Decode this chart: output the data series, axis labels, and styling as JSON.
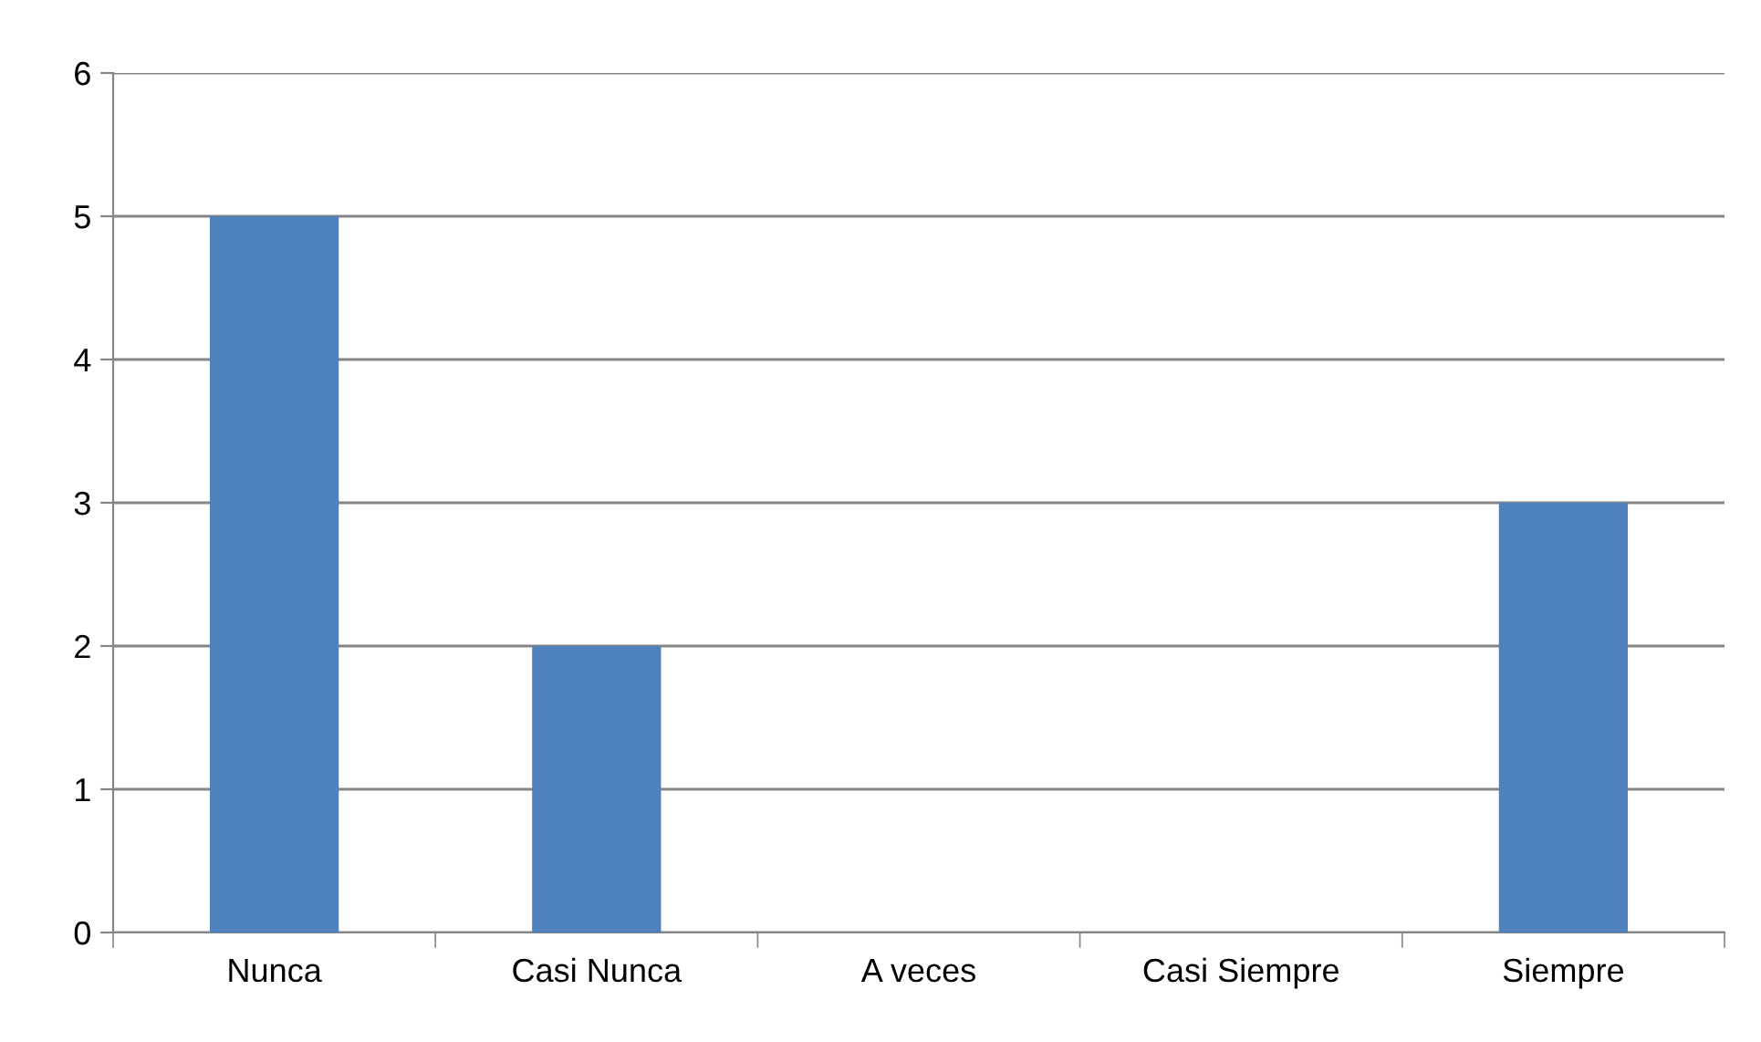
{
  "chart_data": {
    "type": "bar",
    "categories": [
      "Nunca",
      "Casi Nunca",
      "A veces",
      "Casi Siempre",
      "Siempre"
    ],
    "values": [
      5,
      2,
      0,
      0,
      3
    ],
    "color": "#4f81bd",
    "ylim": [
      0,
      6
    ],
    "yticks": [
      0,
      1,
      2,
      3,
      4,
      5,
      6
    ],
    "grid": "y",
    "legend": false
  }
}
